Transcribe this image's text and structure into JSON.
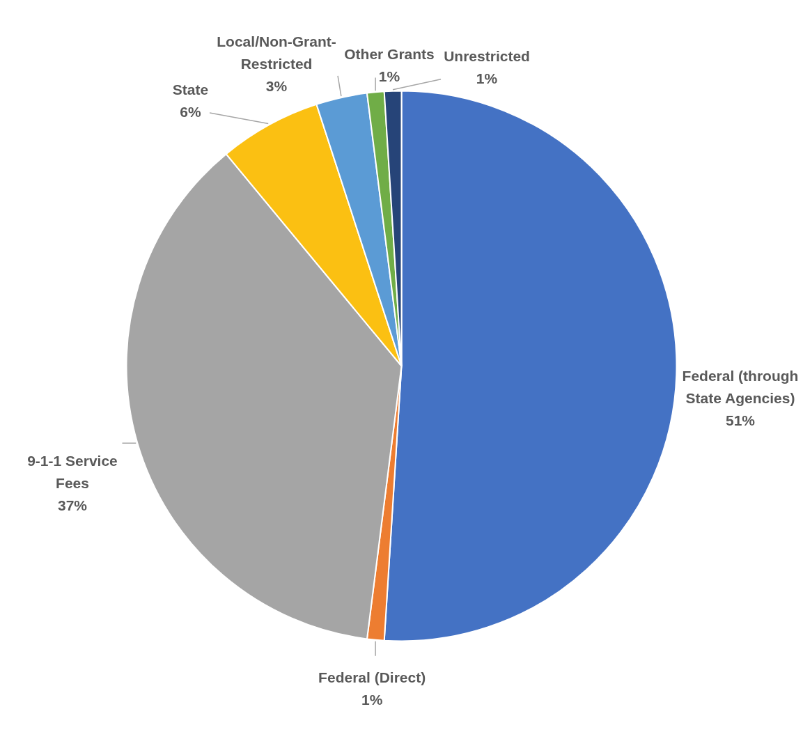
{
  "chart_data": {
    "type": "pie",
    "categories": [
      "Federal (through State Agencies)",
      "Federal (Direct)",
      "9-1-1 Service Fees",
      "State",
      "Local/Non-Grant-Restricted",
      "Other Grants",
      "Unrestricted"
    ],
    "values": [
      51,
      1,
      37,
      6,
      3,
      1,
      1
    ],
    "value_labels": [
      "51%",
      "1%",
      "37%",
      "6%",
      "3%",
      "1%",
      "1%"
    ],
    "colors": [
      "#4472c4",
      "#ed7d31",
      "#a5a5a5",
      "#fbc012",
      "#5b9bd5",
      "#70ad47",
      "#264478"
    ]
  }
}
